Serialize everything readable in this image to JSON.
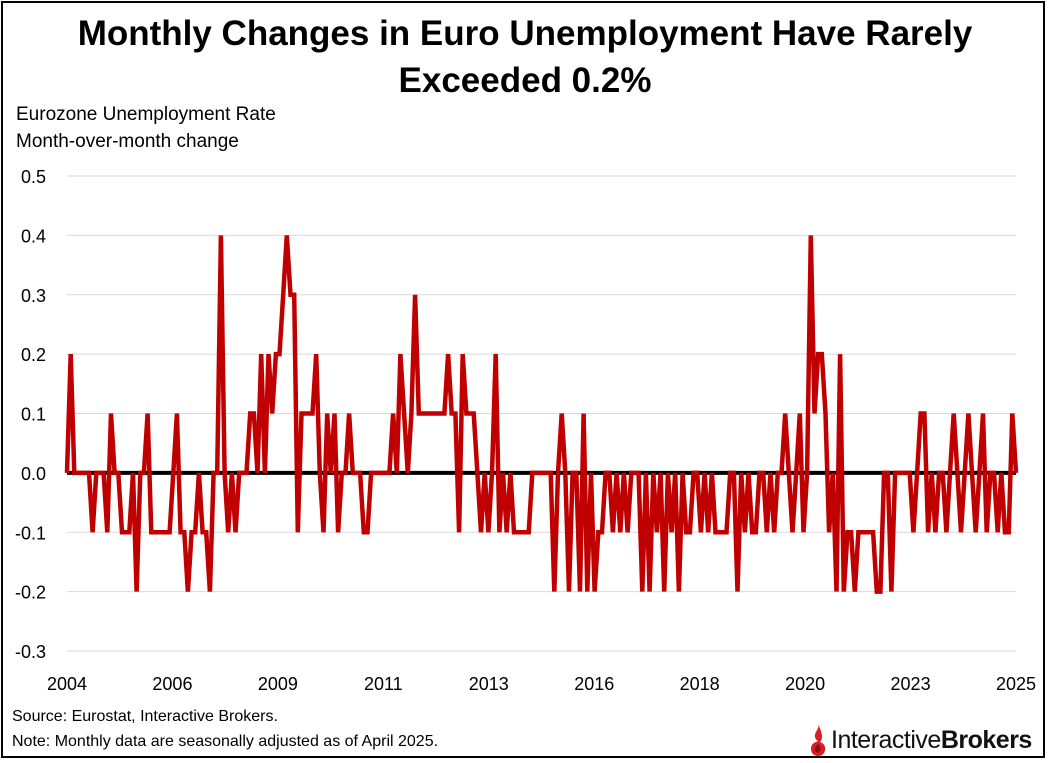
{
  "chart_data": {
    "type": "line",
    "title": "Monthly Changes in Euro Unemployment Have Rarely Exceeded 0.2%",
    "subtitle": [
      "Eurozone Unemployment Rate",
      "Month-over-month change"
    ],
    "xlabel": "",
    "ylabel": "",
    "ylim": [
      -0.3,
      0.5
    ],
    "yticks": [
      "0.5",
      "0.4",
      "0.3",
      "0.2",
      "0.1",
      "0.0",
      "-0.1",
      "-0.2",
      "-0.3"
    ],
    "xticks": [
      "2004",
      "2006",
      "2009",
      "2011",
      "2013",
      "2016",
      "2018",
      "2020",
      "2023",
      "2025"
    ],
    "grid": true,
    "colors": {
      "series": "#c00000",
      "zero_line": "#000000",
      "grid": "#d9d9d9",
      "brand": "#d81f26"
    },
    "series": [
      {
        "name": "Eurozone Unemployment Rate MoM change",
        "values": [
          0,
          0.2,
          0,
          0,
          0,
          0,
          0,
          -0.1,
          0,
          0,
          0,
          -0.1,
          0.1,
          0,
          0,
          -0.1,
          -0.1,
          -0.1,
          0,
          -0.2,
          0,
          0,
          0.1,
          -0.1,
          -0.1,
          -0.1,
          -0.1,
          -0.1,
          -0.1,
          0,
          0.1,
          -0.1,
          -0.1,
          -0.2,
          -0.1,
          -0.1,
          0,
          -0.1,
          -0.1,
          -0.2,
          0,
          0,
          0.4,
          0,
          -0.1,
          0,
          -0.1,
          0,
          0,
          0,
          0.1,
          0.1,
          0,
          0.2,
          0,
          0.2,
          0.1,
          0.2,
          0.2,
          0.3,
          0.4,
          0.3,
          0.3,
          -0.1,
          0.1,
          0.1,
          0.1,
          0.1,
          0.2,
          0,
          -0.1,
          0.1,
          0,
          0.1,
          -0.1,
          0,
          0,
          0.1,
          0,
          0,
          0,
          -0.1,
          -0.1,
          0,
          0,
          0,
          0,
          0,
          0,
          0.1,
          0,
          0.2,
          0.1,
          0,
          0.1,
          0.3,
          0.1,
          0.1,
          0.1,
          0.1,
          0.1,
          0.1,
          0.1,
          0.1,
          0.2,
          0.1,
          0.1,
          -0.1,
          0.2,
          0.1,
          0.1,
          0.1,
          0,
          -0.1,
          0,
          -0.1,
          0,
          0.2,
          -0.1,
          0,
          -0.1,
          0,
          -0.1,
          -0.1,
          -0.1,
          -0.1,
          -0.1,
          0,
          0,
          0,
          0,
          0,
          0,
          -0.2,
          0,
          0.1,
          0,
          -0.2,
          0,
          0,
          -0.2,
          0.1,
          -0.2,
          0,
          -0.2,
          -0.1,
          -0.1,
          0,
          0,
          -0.1,
          0,
          -0.1,
          0,
          -0.1,
          0,
          0,
          0,
          -0.2,
          0,
          -0.2,
          0,
          -0.1,
          0,
          -0.2,
          0,
          -0.1,
          0,
          -0.2,
          0,
          -0.1,
          -0.1,
          0,
          0,
          -0.1,
          0,
          -0.1,
          0,
          -0.1,
          -0.1,
          -0.1,
          -0.1,
          0,
          0,
          -0.2,
          0,
          -0.1,
          0,
          -0.1,
          -0.1,
          0,
          0,
          -0.1,
          0,
          -0.1,
          0,
          0,
          0.1,
          0,
          -0.1,
          0,
          0.1,
          -0.1,
          0,
          0.4,
          0.1,
          0.2,
          0.2,
          0.1,
          -0.1,
          0,
          -0.2,
          0.2,
          -0.2,
          -0.1,
          -0.1,
          -0.2,
          -0.1,
          -0.1,
          -0.1,
          -0.1,
          -0.1,
          -0.2,
          -0.2,
          0,
          0,
          -0.2,
          0,
          0,
          0,
          0,
          0,
          -0.1,
          0,
          0.1,
          0.1,
          -0.1,
          0,
          -0.1,
          0,
          0,
          -0.1,
          0,
          0.1,
          0,
          -0.1,
          0,
          0.1,
          0,
          -0.1,
          0,
          0.1,
          -0.1,
          0,
          0,
          -0.1,
          0,
          -0.1,
          -0.1,
          0.1,
          0
        ]
      }
    ]
  },
  "footnotes": {
    "source": "Source: Eurostat, Interactive Brokers.",
    "note": "Note: Monthly data are seasonally adjusted as of April 2025."
  },
  "brand": {
    "name_regular": "Interactive",
    "name_bold": "Brokers"
  },
  "icons": {
    "logo": "interactive-brokers-flame-icon"
  }
}
